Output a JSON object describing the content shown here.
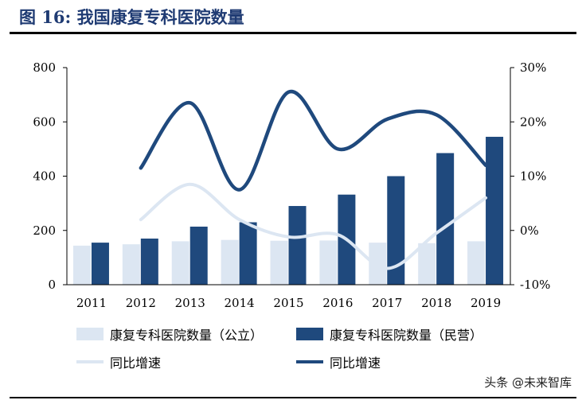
{
  "figure": {
    "title": "图 16:  我国康复专科医院数量"
  },
  "watermark": "头条 @未来智库",
  "chart_data": {
    "type": "bar",
    "categories": [
      "2011",
      "2012",
      "2013",
      "2014",
      "2015",
      "2016",
      "2017",
      "2018",
      "2019"
    ],
    "y_left": {
      "min": 0,
      "max": 800,
      "ticks": [
        "0",
        "200",
        "400",
        "600",
        "800"
      ]
    },
    "y_right": {
      "min": -10,
      "max": 30,
      "ticks": [
        "-10%",
        "0%",
        "10%",
        "20%",
        "30%"
      ]
    },
    "series": [
      {
        "name": "康复专科医院数量(公立)",
        "kind": "bar",
        "axis": "left",
        "color": "#dce6f2",
        "values": [
          144,
          149,
          160,
          165,
          162,
          163,
          155,
          153,
          160
        ]
      },
      {
        "name": "康复专科医院数量(民营)",
        "kind": "bar",
        "axis": "left",
        "color": "#1f497d",
        "values": [
          155,
          170,
          214,
          230,
          290,
          332,
          400,
          485,
          545
        ]
      },
      {
        "name": "同比增速",
        "kind": "line",
        "axis": "right",
        "color": "#dce6f2",
        "values": [
          null,
          2,
          8.5,
          2,
          -1.2,
          -0.8,
          -7,
          -0.5,
          6
        ]
      },
      {
        "name": "同比增速",
        "kind": "line",
        "axis": "right",
        "color": "#1f497d",
        "values": [
          null,
          11.5,
          23.5,
          7.5,
          25.5,
          15,
          20.5,
          21.3,
          12
        ]
      }
    ],
    "legend": [
      {
        "label": "康复专科医院数量（公立）",
        "marker": "bar",
        "color": "#dce6f2"
      },
      {
        "label": "康复专科医院数量（民营）",
        "marker": "bar",
        "color": "#1f497d"
      },
      {
        "label": "同比增速",
        "marker": "line",
        "color": "#dce6f2"
      },
      {
        "label": "同比增速",
        "marker": "line",
        "color": "#1f497d"
      }
    ],
    "legend_position": "bottom",
    "grid": false
  }
}
